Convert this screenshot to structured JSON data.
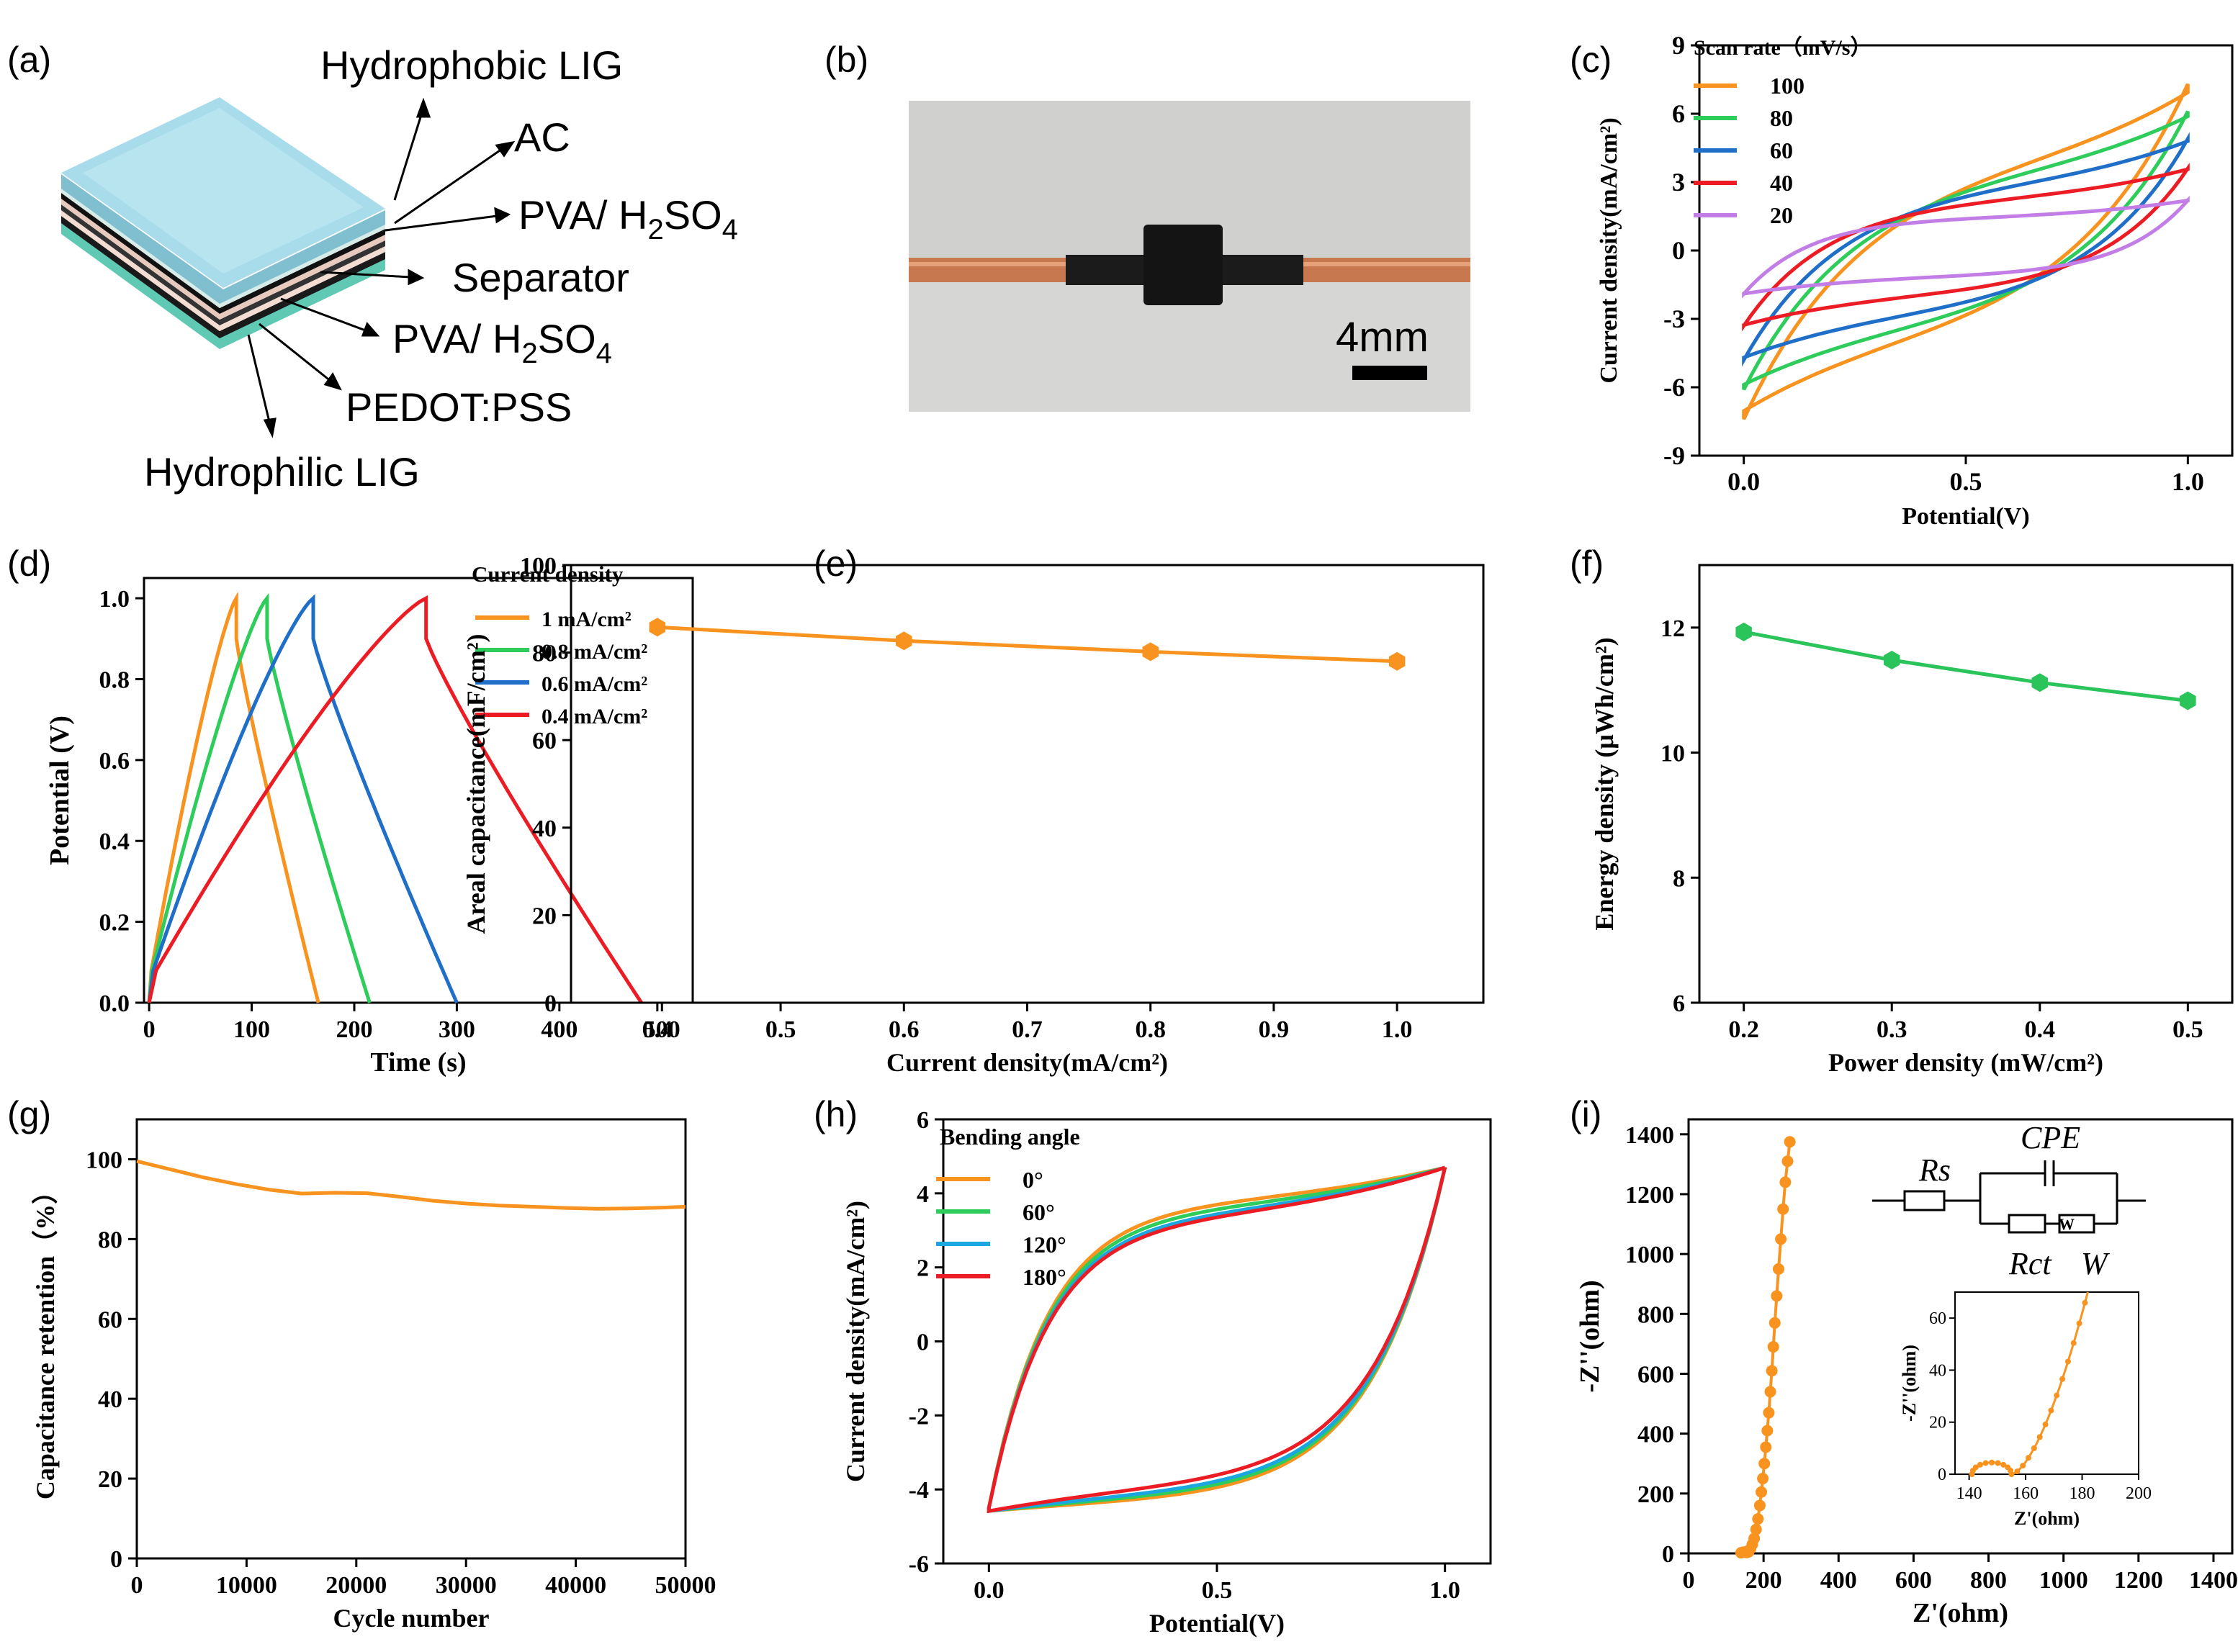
{
  "colors": {
    "orange": "#f7931e",
    "green": "#2ecc5a",
    "blue": "#1f6fc9",
    "red": "#ec1c24",
    "purple": "#c27ee6",
    "cyan": "#1ca6df",
    "energy_green": "#2bc45a"
  },
  "panel_a": {
    "label": "(a)",
    "layers": [
      {
        "text": "Hydrophobic LIG"
      },
      {
        "text": "AC"
      },
      {
        "text": "PVA/ H",
        "sub": "2",
        "tail": "SO",
        "sub2": "4"
      },
      {
        "text": "Separator"
      },
      {
        "text": "PVA/ H",
        "sub": "2",
        "tail": "SO",
        "sub2": "4"
      },
      {
        "text": "PEDOT:PSS"
      },
      {
        "text": "Hydrophilic LIG"
      }
    ]
  },
  "panel_b": {
    "label": "(b)",
    "scale_bar": "4mm"
  },
  "chart_data": [
    {
      "panel": "(c)",
      "type": "line",
      "xlabel": "Potential(V)",
      "ylabel": "Current density(mA/cm²)",
      "xlim": [
        -0.1,
        1.1
      ],
      "ylim": [
        -9,
        9
      ],
      "xticks": [
        0.0,
        0.5,
        1.0
      ],
      "xtick_labels": [
        "0.0",
        "0.5",
        "1.0"
      ],
      "yticks": [
        -9,
        -6,
        -3,
        0,
        3,
        6,
        9
      ],
      "legend_title": "Scan rate（mV/s）",
      "series": [
        {
          "name": "100",
          "color": "orange",
          "ipos": 7.3,
          "ineg": -7.4,
          "shape": 0.33
        },
        {
          "name": "80",
          "color": "green",
          "ipos": 6.1,
          "ineg": -6.1,
          "shape": 0.28
        },
        {
          "name": "60",
          "color": "blue",
          "ipos": 4.9,
          "ineg": -4.8,
          "shape": 0.22
        },
        {
          "name": "40",
          "color": "red",
          "ipos": 3.6,
          "ineg": -3.3,
          "shape": 0.15
        },
        {
          "name": "20",
          "color": "purple",
          "ipos": 2.2,
          "ineg": -1.9,
          "shape": 0.06
        }
      ]
    },
    {
      "panel": "(d)",
      "type": "line",
      "xlabel": "Time (s)",
      "ylabel": "Potential (V)",
      "xlim": [
        -5,
        530
      ],
      "ylim": [
        0,
        1.05
      ],
      "xticks": [
        0,
        100,
        200,
        300,
        400,
        500
      ],
      "yticks": [
        0.0,
        0.2,
        0.4,
        0.6,
        0.8,
        1.0
      ],
      "ytick_labels": [
        "0.0",
        "0.2",
        "0.4",
        "0.6",
        "0.8",
        "1.0"
      ],
      "legend_title": "Current density",
      "series": [
        {
          "name": "1 mA/cm²",
          "color": "orange",
          "t_peak": 85,
          "t_end": 165
        },
        {
          "name": "0.8 mA/cm²",
          "color": "green",
          "t_peak": 115,
          "t_end": 215
        },
        {
          "name": "0.6 mA/cm²",
          "color": "blue",
          "t_peak": 160,
          "t_end": 300
        },
        {
          "name": "0.4 mA/cm²",
          "color": "red",
          "t_peak": 270,
          "t_end": 480
        }
      ]
    },
    {
      "panel": "(e)",
      "type": "line",
      "xlabel": "Current density(mA/cm²)",
      "ylabel": "Areal capacitance(mF/cm²)",
      "xlim": [
        0.33,
        1.07
      ],
      "ylim": [
        0,
        100
      ],
      "xticks": [
        0.4,
        0.5,
        0.6,
        0.7,
        0.8,
        0.9,
        1.0
      ],
      "xtick_labels": [
        "0.4",
        "0.5",
        "0.6",
        "0.7",
        "0.8",
        "0.9",
        "1.0"
      ],
      "yticks": [
        0,
        20,
        40,
        60,
        80,
        100
      ],
      "series": [
        {
          "name": "capacitance",
          "color": "orange",
          "x": [
            0.4,
            0.6,
            0.8,
            1.0
          ],
          "y": [
            85.8,
            82.7,
            80.2,
            78.0
          ]
        }
      ]
    },
    {
      "panel": "(f)",
      "type": "line",
      "xlabel": "Power density (mW/cm²)",
      "ylabel": "Energy density (μWh/cm²)",
      "xlim": [
        0.17,
        0.53
      ],
      "ylim": [
        6,
        13
      ],
      "xticks": [
        0.2,
        0.3,
        0.4,
        0.5
      ],
      "xtick_labels": [
        "0.2",
        "0.3",
        "0.4",
        "0.5"
      ],
      "yticks": [
        6,
        8,
        10,
        12
      ],
      "series": [
        {
          "name": "energy",
          "color": "energy_green",
          "x": [
            0.2,
            0.3,
            0.4,
            0.5
          ],
          "y": [
            11.93,
            11.48,
            11.12,
            10.83
          ]
        }
      ]
    },
    {
      "panel": "(g)",
      "type": "line",
      "xlabel": "Cycle number",
      "ylabel": "Capacitance retention（%）",
      "xlim": [
        0,
        50000
      ],
      "ylim": [
        0,
        110
      ],
      "xticks": [
        0,
        10000,
        20000,
        30000,
        40000,
        50000
      ],
      "yticks": [
        0,
        20,
        40,
        60,
        80,
        100
      ],
      "series": [
        {
          "name": "retention",
          "color": "orange",
          "x": [
            0,
            3000,
            6000,
            9000,
            12000,
            15000,
            18000,
            21000,
            24000,
            27000,
            30000,
            33000,
            36000,
            39000,
            42000,
            45000,
            48000,
            50000
          ],
          "y": [
            99.5,
            97.5,
            95.5,
            93.8,
            92.4,
            91.4,
            91.6,
            91.5,
            90.6,
            89.6,
            88.9,
            88.4,
            88.1,
            87.8,
            87.6,
            87.7,
            87.9,
            88.1
          ]
        }
      ]
    },
    {
      "panel": "(h)",
      "type": "line",
      "xlabel": "Potential(V)",
      "ylabel": "Current density(mA/cm²)",
      "xlim": [
        -0.1,
        1.1
      ],
      "ylim": [
        -6,
        6
      ],
      "xticks": [
        0.0,
        0.5,
        1.0
      ],
      "xtick_labels": [
        "0.0",
        "0.5",
        "1.0"
      ],
      "yticks": [
        -6,
        -4,
        -2,
        0,
        2,
        4,
        6
      ],
      "legend_title": "Bending angle",
      "series": [
        {
          "name": "0°",
          "color": "orange",
          "upper_mid": 3.75,
          "lower_mid": -4.3
        },
        {
          "name": "60°",
          "color": "green",
          "upper_mid": 3.6,
          "lower_mid": -4.2
        },
        {
          "name": "120°",
          "color": "cyan",
          "upper_mid": 3.45,
          "lower_mid": -4.1
        },
        {
          "name": "180°",
          "color": "red",
          "upper_mid": 3.35,
          "lower_mid": -3.9
        }
      ]
    },
    {
      "panel": "(i)",
      "type": "scatter",
      "xlabel": "Z'(ohm)",
      "ylabel": "-Z''(ohm)",
      "xlim": [
        0,
        1450
      ],
      "ylim": [
        0,
        1450
      ],
      "xticks": [
        0,
        200,
        400,
        600,
        800,
        1000,
        1200,
        1400
      ],
      "yticks": [
        0,
        200,
        400,
        600,
        800,
        1000,
        1200,
        1400
      ],
      "series": [
        {
          "name": "EIS",
          "color": "orange",
          "x": [
            140,
            145,
            150,
            155,
            160,
            165,
            170,
            175,
            180,
            185,
            190,
            194,
            198,
            202,
            206,
            210,
            214,
            218,
            222,
            226,
            230,
            235,
            240,
            246,
            252,
            258,
            264,
            270
          ],
          "y": [
            2,
            4,
            4.5,
            3,
            5,
            15,
            30,
            50,
            80,
            115,
            160,
            205,
            250,
            300,
            355,
            410,
            470,
            540,
            610,
            690,
            770,
            860,
            950,
            1050,
            1150,
            1240,
            1310,
            1375
          ]
        }
      ],
      "inset": {
        "xlabel": "Z'(ohm)",
        "ylabel": "-Z''(ohm)",
        "xlim": [
          135,
          200
        ],
        "ylim": [
          0,
          70
        ],
        "xticks": [
          140,
          160,
          180,
          200
        ],
        "yticks": [
          0,
          20,
          40,
          60
        ]
      },
      "circuit": {
        "labels": [
          "Rs",
          "CPE",
          "Rct",
          "W"
        ],
        "warburg_symbol": "W"
      }
    }
  ]
}
